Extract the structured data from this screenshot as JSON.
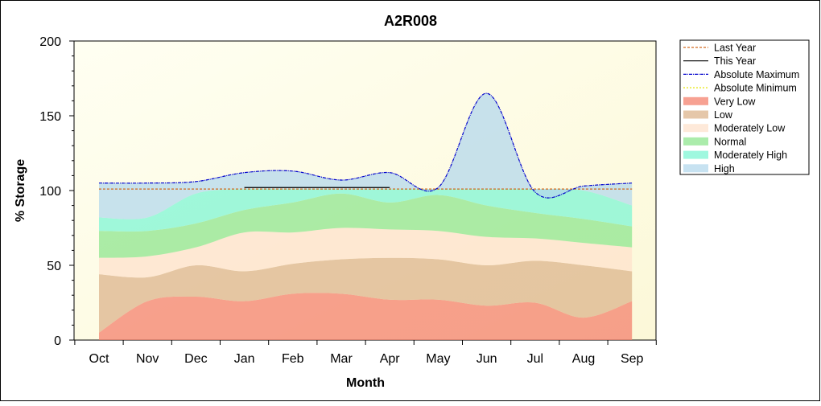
{
  "chart_data": {
    "type": "band-area",
    "title": "A2R008",
    "x_label": "Month",
    "y_label": "% Storage",
    "categories": [
      "Oct",
      "Nov",
      "Dec",
      "Jan",
      "Feb",
      "Mar",
      "Apr",
      "May",
      "Jun",
      "Jul",
      "Aug",
      "Sep"
    ],
    "ylim": [
      0,
      200
    ],
    "yticks": [
      0,
      50,
      100,
      150,
      200
    ],
    "bands": [
      {
        "name": "Very Low",
        "color": "#f4826e",
        "values": [
          5,
          26,
          29,
          26,
          31,
          31,
          27,
          27,
          23,
          25,
          15,
          26
        ]
      },
      {
        "name": "Low",
        "color": "#dcb48c",
        "values": [
          44,
          42,
          50,
          46,
          51,
          54,
          55,
          54,
          50,
          53,
          50,
          46
        ]
      },
      {
        "name": "Moderately Low",
        "color": "#fde2cc",
        "values": [
          55,
          56,
          62,
          72,
          72,
          75,
          74,
          73,
          69,
          68,
          65,
          62
        ]
      },
      {
        "name": "Normal",
        "color": "#8fe68f",
        "values": [
          73,
          73,
          78,
          87,
          92,
          98,
          92,
          97,
          90,
          85,
          81,
          76
        ]
      },
      {
        "name": "Moderately High",
        "color": "#7ff5d4",
        "values": [
          82,
          82,
          98,
          101,
          101,
          101,
          101,
          101,
          101,
          101,
          100,
          90
        ]
      },
      {
        "name": "High",
        "color": "#b4d8ec",
        "values": [
          105,
          105,
          106,
          112,
          113,
          107,
          112,
          102,
          165,
          99,
          103,
          105
        ]
      }
    ],
    "series": [
      {
        "name": "Last Year",
        "color": "#d2691e",
        "dash": "3,2",
        "values": [
          101,
          101,
          101,
          101,
          101,
          101,
          101,
          101,
          101,
          101,
          101,
          101
        ]
      },
      {
        "name": "This Year",
        "color": "#000000",
        "dash": "",
        "values": [
          null,
          null,
          null,
          102,
          102,
          102,
          102,
          null,
          null,
          null,
          null,
          null
        ]
      },
      {
        "name": "Absolute Maximum",
        "color": "#0000cc",
        "dash": "4,1,1,1",
        "values": [
          105,
          105,
          106,
          112,
          113,
          107,
          112,
          102,
          165,
          99,
          103,
          105
        ]
      },
      {
        "name": "Absolute Minimum",
        "color": "#e6e600",
        "dash": "2,2",
        "values": [
          null,
          null,
          null,
          null,
          null,
          null,
          null,
          null,
          null,
          null,
          null,
          null
        ]
      }
    ]
  }
}
